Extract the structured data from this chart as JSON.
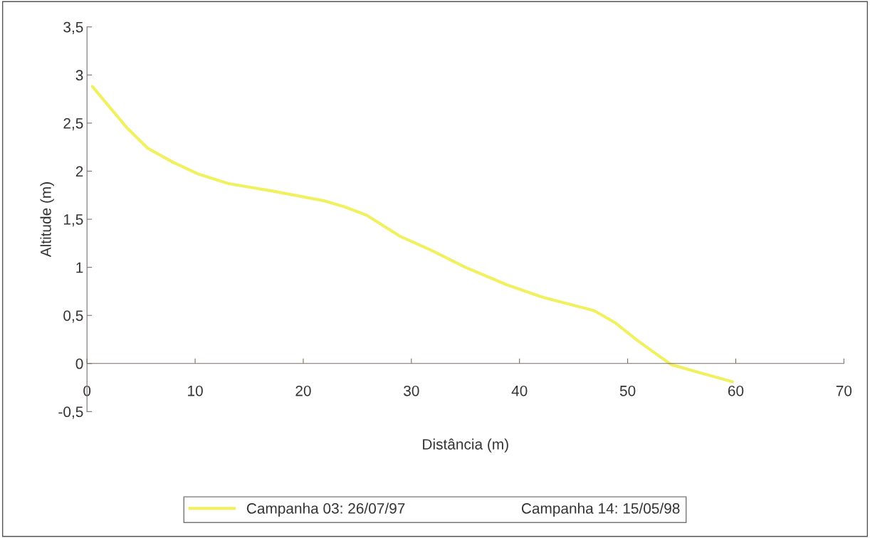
{
  "chart_data": {
    "type": "line",
    "xlabel": "Distância (m)",
    "ylabel": "Altitude (m)",
    "xlim": [
      0,
      70
    ],
    "xticks": [
      0,
      10,
      20,
      30,
      40,
      50,
      60,
      70
    ],
    "ylim": [
      -0.5,
      3.5
    ],
    "yticks": [
      {
        "value": -0.5,
        "label": "-0,5"
      },
      0,
      {
        "value": 0.5,
        "label": "0,5"
      },
      1,
      {
        "value": 1.5,
        "label": "1,5"
      },
      2,
      {
        "value": 2.5,
        "label": "2,5"
      },
      3,
      {
        "value": 3.5,
        "label": "3,5"
      }
    ],
    "grid": false,
    "legend": "bottom",
    "marker": "none",
    "line_style": "solid",
    "series": [
      {
        "name": "Campanha 03: 26/07/97",
        "color": "#f0f060",
        "x": [
          0.5,
          3.7,
          5.6,
          8.0,
          10.3,
          13.1,
          17.3,
          22.0,
          23.8,
          25.9,
          29.0,
          31.8,
          35.0,
          38.8,
          42.1,
          46.9,
          48.9,
          50.9,
          54.0,
          56.5,
          59.7
        ],
        "values": [
          2.88,
          2.45,
          2.24,
          2.09,
          1.97,
          1.87,
          1.79,
          1.69,
          1.63,
          1.54,
          1.32,
          1.18,
          1.0,
          0.82,
          0.69,
          0.55,
          0.42,
          0.24,
          -0.01,
          -0.09,
          -0.19
        ]
      },
      {
        "name": "Campanha 14: 15/05/98"
      }
    ]
  }
}
